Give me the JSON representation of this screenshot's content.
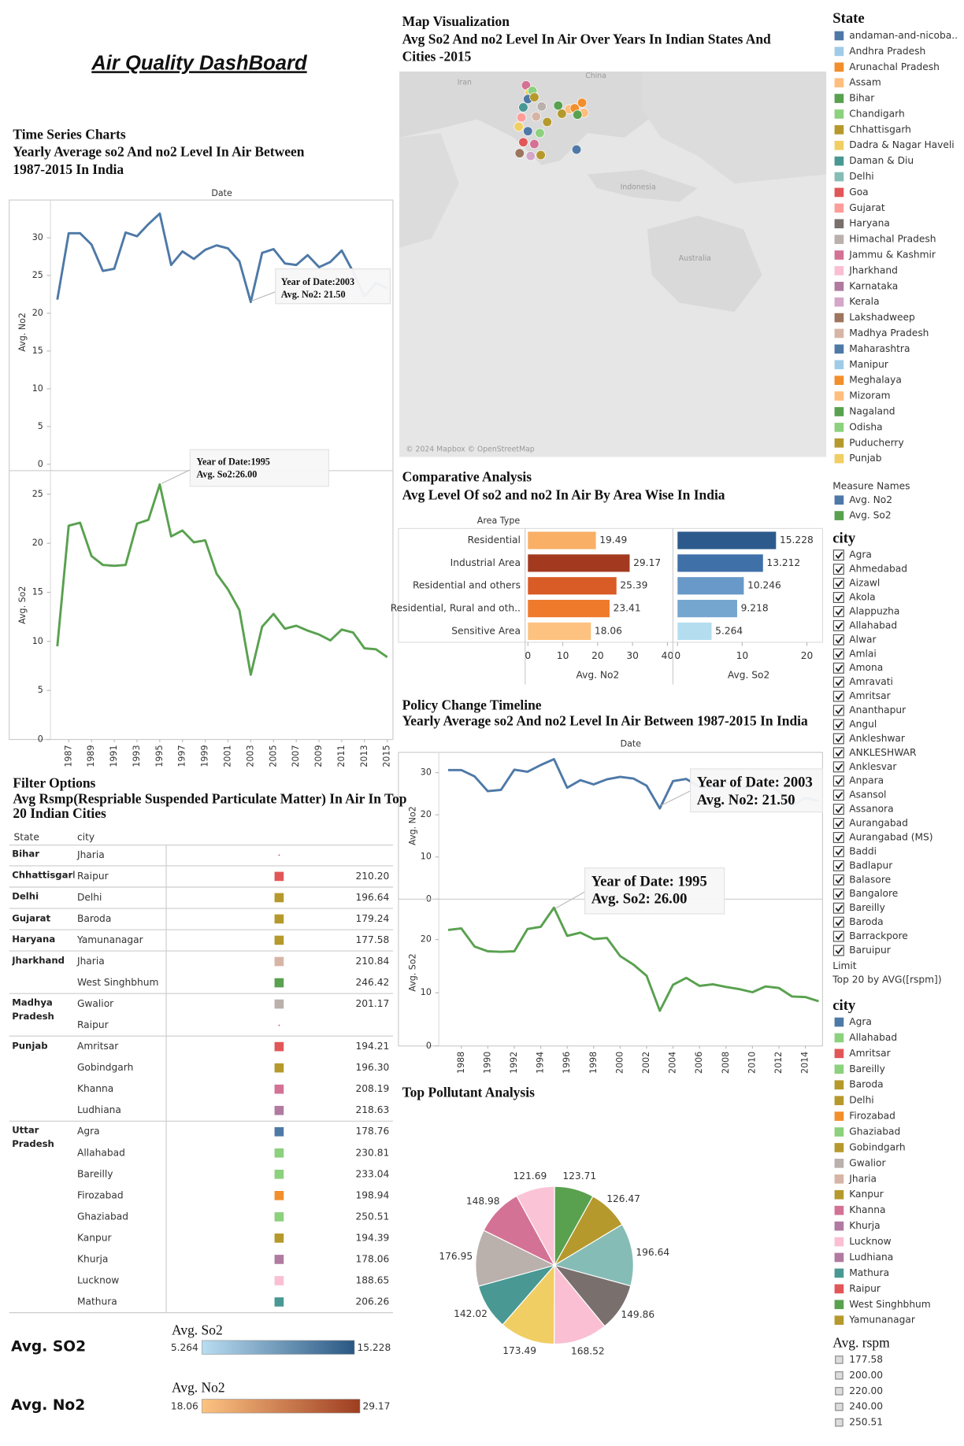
{
  "header": {
    "title": "Air Quality DashBoard"
  },
  "chart_data": [
    {
      "type": "line",
      "title": "Time Series Charts",
      "subtitle": [
        "Yearly Average so2 And no2  Level In Air Between",
        "1987-2015 In India"
      ],
      "x_header": "Date",
      "x": [
        1986,
        1987,
        1988,
        1989,
        1990,
        1991,
        1992,
        1993,
        1994,
        1995,
        1996,
        1997,
        1998,
        1999,
        2000,
        2001,
        2002,
        2003,
        2004,
        2005,
        2006,
        2007,
        2008,
        2009,
        2010,
        2011,
        2012,
        2013,
        2014,
        2015
      ],
      "xlim": [
        1985.4,
        2015.5
      ],
      "xticks": [
        1987,
        1989,
        1991,
        1993,
        1995,
        1997,
        1999,
        2001,
        2003,
        2005,
        2007,
        2009,
        2011,
        2013,
        2015
      ],
      "series": [
        {
          "name": "Avg. No2",
          "color": "#4e79a7",
          "values": [
            21.8,
            30.6,
            30.6,
            29.1,
            25.6,
            25.9,
            30.7,
            30.2,
            31.8,
            33.2,
            26.4,
            28.2,
            27.2,
            28.4,
            29.0,
            28.6,
            26.9,
            21.5,
            28.0,
            28.5,
            26.6,
            26.4,
            27.7,
            26.1,
            26.8,
            28.3,
            25.5,
            22.2,
            24.0,
            23.3
          ],
          "ylim": [
            0,
            35
          ],
          "yticks": [
            0,
            5,
            10,
            15,
            20,
            25,
            30
          ],
          "annotation": [
            "Year of Date:2003",
            "Avg. No2: 21.50"
          ]
        },
        {
          "name": "Avg. So2",
          "color": "#59a14f",
          "values": [
            9.5,
            21.8,
            22.1,
            18.7,
            17.8,
            17.7,
            17.8,
            22.0,
            22.4,
            26.0,
            20.7,
            21.3,
            20.1,
            20.3,
            16.9,
            15.3,
            13.2,
            6.6,
            11.5,
            12.8,
            11.3,
            11.6,
            11.1,
            10.7,
            10.1,
            11.2,
            10.9,
            9.3,
            9.2,
            8.4
          ],
          "ylim": [
            0,
            27.4
          ],
          "yticks": [
            0,
            5,
            10,
            15,
            20,
            25
          ],
          "annotation": [
            "Year of Date:1995",
            "Avg. So2:26.00"
          ]
        }
      ]
    },
    {
      "type": "line",
      "title": "Policy Change Timeline",
      "subtitle": [
        "Yearly Average so2 And no2  Level In Air Between 1987-2015 In India"
      ],
      "x_header": "Date",
      "x": [
        1987,
        1988,
        1989,
        1990,
        1991,
        1992,
        1993,
        1994,
        1995,
        1996,
        1997,
        1998,
        1999,
        2000,
        2001,
        2002,
        2003,
        2004,
        2005,
        2006,
        2007,
        2008,
        2009,
        2010,
        2011,
        2012,
        2013,
        2014,
        2015
      ],
      "xlim": [
        1986.3,
        2015.3
      ],
      "xticks": [
        1988,
        1990,
        1992,
        1994,
        1996,
        1998,
        2000,
        2002,
        2004,
        2006,
        2008,
        2010,
        2012,
        2014
      ],
      "series": [
        {
          "name": "Avg. No2",
          "color": "#4e79a7",
          "values": [
            30.6,
            30.6,
            29.1,
            25.6,
            25.9,
            30.7,
            30.2,
            31.8,
            33.2,
            26.4,
            28.2,
            27.2,
            28.4,
            29.0,
            28.6,
            26.9,
            21.5,
            28.0,
            28.5,
            26.6,
            26.4,
            27.7,
            26.1,
            26.8,
            28.3,
            25.5,
            22.2,
            24.0,
            23.3
          ],
          "ylim": [
            0,
            34.8
          ],
          "yticks": [
            0,
            10,
            20,
            30
          ],
          "annotation": [
            "Year of Date: 2003",
            "Avg. No2: 21.50"
          ]
        },
        {
          "name": "Avg. So2",
          "color": "#59a14f",
          "values": [
            21.8,
            22.1,
            18.7,
            17.8,
            17.7,
            17.8,
            22.0,
            22.4,
            26.0,
            20.7,
            21.3,
            20.1,
            20.3,
            16.9,
            15.3,
            13.2,
            6.6,
            11.5,
            12.8,
            11.3,
            11.6,
            11.1,
            10.7,
            10.1,
            11.2,
            10.9,
            9.3,
            9.2,
            8.4
          ],
          "ylim": [
            0,
            27.6
          ],
          "yticks": [
            0,
            10,
            20
          ],
          "annotation": [
            "Year of Date: 1995",
            "Avg. So2: 26.00"
          ]
        }
      ]
    },
    {
      "type": "bar",
      "orientation": "horizontal",
      "title": "Comparative Analysis",
      "subtitle": "Avg Level Of so2 and no2 In Air By Area Wise In India",
      "category_header": "Area Type",
      "categories": [
        "Residential",
        "Industrial Area",
        "Residential and others",
        "Residential, Rural and oth..",
        "Sensitive Area"
      ],
      "series": [
        {
          "name": "Avg. No2",
          "values": [
            19.49,
            29.17,
            25.39,
            23.41,
            18.06
          ],
          "colors": [
            "#f9b066",
            "#a33a1f",
            "#d95b25",
            "#ef7a2c",
            "#fdc27f"
          ],
          "xlim": [
            0,
            40
          ],
          "xticks": [
            0,
            10,
            20,
            30,
            40
          ]
        },
        {
          "name": "Avg. So2",
          "values": [
            15.228,
            13.212,
            10.246,
            9.218,
            5.264
          ],
          "colors": [
            "#2c5a8c",
            "#3f70a8",
            "#6899c8",
            "#75a6d0",
            "#b5ddf0"
          ],
          "xlim": [
            0,
            22
          ],
          "xticks": [
            0,
            10,
            20
          ]
        }
      ]
    },
    {
      "type": "pie",
      "title": "Top Pollutant Analysis",
      "values": [
        123.71,
        126.47,
        196.64,
        149.86,
        168.52,
        173.49,
        142.02,
        176.95,
        148.98,
        121.69
      ],
      "colors": [
        "#59a14f",
        "#b6992d",
        "#86bcb6",
        "#79706e",
        "#fabfd2",
        "#f1ce63",
        "#499894",
        "#bab0ac",
        "#d37295",
        "#fbc3d6"
      ]
    }
  ],
  "map": {
    "title": "Map Visualization",
    "subtitle": [
      "Avg So2 And no2 Level In Air Over Years In Indian States And",
      "Cities -2015"
    ],
    "labels": [
      "Iran",
      "China",
      "Indonesia",
      "Australia"
    ],
    "credit": "© 2024 Mapbox © OpenStreetMap"
  },
  "legends": {
    "state": {
      "title": "State",
      "items": [
        {
          "name": "andaman-and-nicoba..",
          "color": "#4e79a7"
        },
        {
          "name": "Andhra Pradesh",
          "color": "#a0cbe8"
        },
        {
          "name": "Arunachal Pradesh",
          "color": "#f28e2b"
        },
        {
          "name": "Assam",
          "color": "#ffbe7d"
        },
        {
          "name": "Bihar",
          "color": "#59a14f"
        },
        {
          "name": "Chandigarh",
          "color": "#8cd17d"
        },
        {
          "name": "Chhattisgarh",
          "color": "#b6992d"
        },
        {
          "name": "Dadra & Nagar Haveli",
          "color": "#f1ce63"
        },
        {
          "name": "Daman & Diu",
          "color": "#499894"
        },
        {
          "name": "Delhi",
          "color": "#86bcb6"
        },
        {
          "name": "Goa",
          "color": "#e15759"
        },
        {
          "name": "Gujarat",
          "color": "#ff9d9a"
        },
        {
          "name": "Haryana",
          "color": "#79706e"
        },
        {
          "name": "Himachal Pradesh",
          "color": "#bab0ac"
        },
        {
          "name": "Jammu & Kashmir",
          "color": "#d37295"
        },
        {
          "name": "Jharkhand",
          "color": "#fabfd2"
        },
        {
          "name": "Karnataka",
          "color": "#b07aa1"
        },
        {
          "name": "Kerala",
          "color": "#d4a6c8"
        },
        {
          "name": "Lakshadweep",
          "color": "#9d7660"
        },
        {
          "name": "Madhya Pradesh",
          "color": "#d7b5a6"
        },
        {
          "name": "Maharashtra",
          "color": "#4e79a7"
        },
        {
          "name": "Manipur",
          "color": "#a0cbe8"
        },
        {
          "name": "Meghalaya",
          "color": "#f28e2b"
        },
        {
          "name": "Mizoram",
          "color": "#ffbe7d"
        },
        {
          "name": "Nagaland",
          "color": "#59a14f"
        },
        {
          "name": "Odisha",
          "color": "#8cd17d"
        },
        {
          "name": "Puducherry",
          "color": "#b6992d"
        },
        {
          "name": "Punjab",
          "color": "#f1ce63"
        }
      ]
    },
    "measure": {
      "title": "Measure Names",
      "items": [
        {
          "name": "Avg. No2",
          "color": "#4e79a7"
        },
        {
          "name": "Avg. So2",
          "color": "#59a14f"
        }
      ]
    },
    "city_filter": {
      "title": "city",
      "items": [
        "Agra",
        "Ahmedabad",
        "Aizawl",
        "Akola",
        "Alappuzha",
        "Allahabad",
        "Alwar",
        "Amlai",
        "Amona",
        "Amravati",
        "Amritsar",
        "Ananthapur",
        "Angul",
        "Ankleshwar",
        "ANKLESHWAR",
        "Anklesvar",
        "Anpara",
        "Asansol",
        "Assanora",
        "Aurangabad",
        "Aurangabad (MS)",
        "Baddi",
        "Badlapur",
        "Balasore",
        "Bangalore",
        "Bareilly",
        "Baroda",
        "Barrackpore",
        "Baruipur"
      ],
      "limit_title": "Limit",
      "limit": "Top 20 by AVG([rspm])"
    },
    "city_color": {
      "title": "city",
      "items": [
        {
          "name": "Agra",
          "color": "#4e79a7"
        },
        {
          "name": "Allahabad",
          "color": "#8cd17d"
        },
        {
          "name": "Amritsar",
          "color": "#e15759"
        },
        {
          "name": "Bareilly",
          "color": "#8cd17d"
        },
        {
          "name": "Baroda",
          "color": "#b6992d"
        },
        {
          "name": "Delhi",
          "color": "#b6992d"
        },
        {
          "name": "Firozabad",
          "color": "#f28e2b"
        },
        {
          "name": "Ghaziabad",
          "color": "#8cd17d"
        },
        {
          "name": "Gobindgarh",
          "color": "#b6992d"
        },
        {
          "name": "Gwalior",
          "color": "#bab0ac"
        },
        {
          "name": "Jharia",
          "color": "#d7b5a6"
        },
        {
          "name": "Kanpur",
          "color": "#b6992d"
        },
        {
          "name": "Khanna",
          "color": "#d37295"
        },
        {
          "name": "Khurja",
          "color": "#b07aa1"
        },
        {
          "name": "Lucknow",
          "color": "#fabfd2"
        },
        {
          "name": "Ludhiana",
          "color": "#b07aa1"
        },
        {
          "name": "Mathura",
          "color": "#499894"
        },
        {
          "name": "Raipur",
          "color": "#e15759"
        },
        {
          "name": "West Singhbhum",
          "color": "#59a14f"
        },
        {
          "name": "Yamunanagar",
          "color": "#b6992d"
        }
      ]
    },
    "rspm": {
      "title": "Avg. rspm",
      "ticks": [
        177.58,
        {
          "value": 200,
          "label": "200.00"
        },
        {
          "value": 220,
          "label": "220.00"
        },
        {
          "value": 240,
          "label": "240.00"
        },
        250.51
      ]
    }
  },
  "table": {
    "title": "Filter Options",
    "subtitle": [
      "Avg Rsmp(Respriable Suspended Particulate Matter) In Air In Top",
      "20 Indian Cities"
    ],
    "headers": [
      "State",
      "city"
    ],
    "groups": [
      {
        "state": "Bihar",
        "rows": [
          {
            "city": "Jharia",
            "value": null
          }
        ]
      },
      {
        "state": "Chhattisgarh",
        "rows": [
          {
            "city": "Raipur",
            "value": "210.20",
            "color": "#e15759"
          }
        ]
      },
      {
        "state": "Delhi",
        "rows": [
          {
            "city": "Delhi",
            "value": "196.64",
            "color": "#b6992d"
          }
        ]
      },
      {
        "state": "Gujarat",
        "rows": [
          {
            "city": "Baroda",
            "value": "179.24",
            "color": "#b6992d"
          }
        ]
      },
      {
        "state": "Haryana",
        "rows": [
          {
            "city": "Yamunanagar",
            "value": "177.58",
            "color": "#b6992d"
          }
        ]
      },
      {
        "state": "Jharkhand",
        "rows": [
          {
            "city": "Jharia",
            "value": "210.84",
            "color": "#d7b5a6"
          },
          {
            "city": "West Singhbhum",
            "value": "246.42",
            "color": "#59a14f"
          }
        ]
      },
      {
        "state": "Madhya Pradesh",
        "rows": [
          {
            "city": "Gwalior",
            "value": "201.17",
            "color": "#bab0ac"
          },
          {
            "city": "Raipur",
            "value": null
          }
        ]
      },
      {
        "state": "Punjab",
        "rows": [
          {
            "city": "Amritsar",
            "value": "194.21",
            "color": "#e15759"
          },
          {
            "city": "Gobindgarh",
            "value": "196.30",
            "color": "#b6992d"
          },
          {
            "city": "Khanna",
            "value": "208.19",
            "color": "#d37295"
          },
          {
            "city": "Ludhiana",
            "value": "218.63",
            "color": "#b07aa1"
          }
        ]
      },
      {
        "state": "Uttar Pradesh",
        "rows": [
          {
            "city": "Agra",
            "value": "178.76",
            "color": "#4e79a7"
          },
          {
            "city": "Allahabad",
            "value": "230.81",
            "color": "#8cd17d"
          },
          {
            "city": "Bareilly",
            "value": "233.04",
            "color": "#8cd17d"
          },
          {
            "city": "Firozabad",
            "value": "198.94",
            "color": "#f28e2b"
          },
          {
            "city": "Ghaziabad",
            "value": "250.51",
            "color": "#8cd17d"
          },
          {
            "city": "Kanpur",
            "value": "194.39",
            "color": "#b6992d"
          },
          {
            "city": "Khurja",
            "value": "178.06",
            "color": "#b07aa1"
          },
          {
            "city": "Lucknow",
            "value": "188.65",
            "color": "#fabfd2"
          },
          {
            "city": "Mathura",
            "value": "206.26",
            "color": "#499894"
          }
        ]
      }
    ]
  },
  "color_legends": [
    {
      "label": "Avg. SO2",
      "title": "Avg. So2",
      "min": 5.264,
      "max": 15.228,
      "colors": [
        "#b9ddf1",
        "#2a5783"
      ]
    },
    {
      "label": "Avg. No2",
      "title": "Avg. No2",
      "min": 18.06,
      "max": 29.17,
      "colors": [
        "#fcc382",
        "#9e3d22"
      ]
    }
  ]
}
